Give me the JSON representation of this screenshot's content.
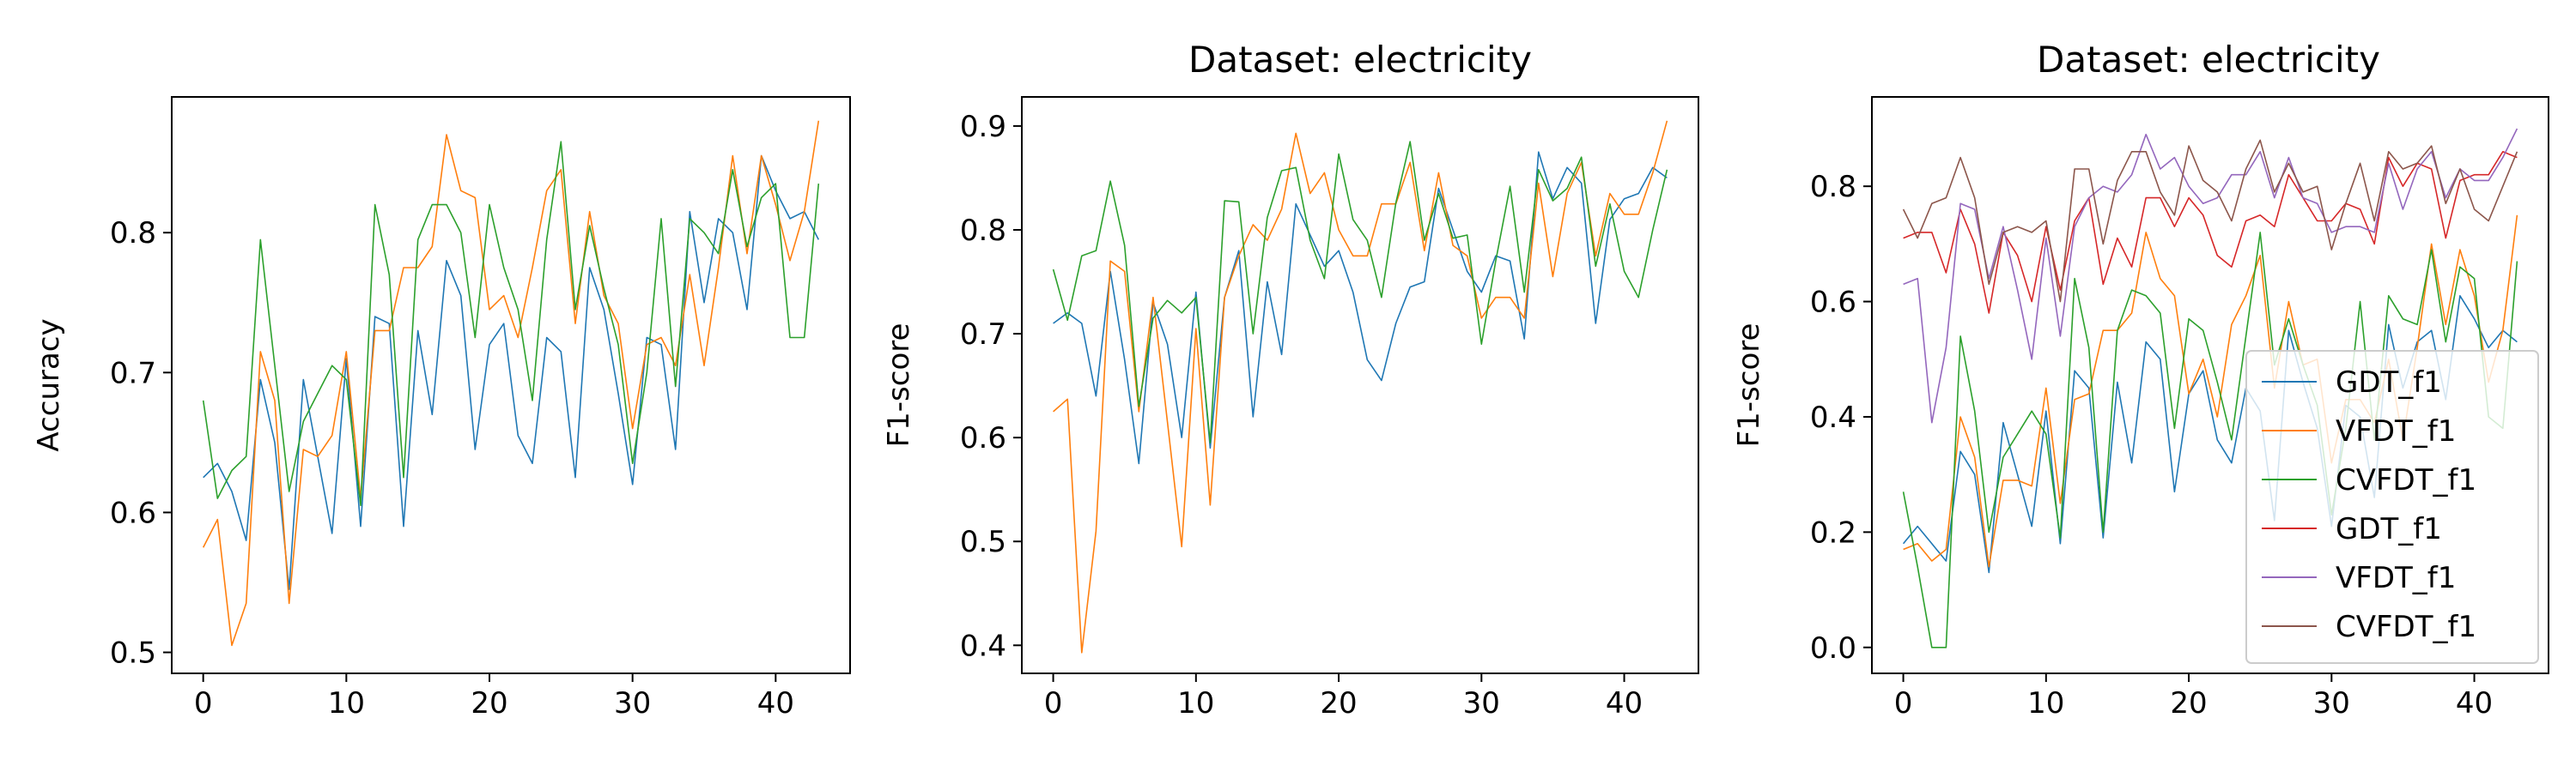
{
  "chart_data": [
    {
      "type": "line",
      "title": "",
      "xlabel": "",
      "ylabel": "Accuracy",
      "xlim": [
        -2.2,
        45.2
      ],
      "ylim": [
        0.485,
        0.897
      ],
      "xticks": [
        0,
        10,
        20,
        30,
        40
      ],
      "yticks": [
        0.5,
        0.6,
        0.7,
        0.8
      ],
      "grid": false,
      "legend": "none",
      "x": [
        0,
        1,
        2,
        3,
        4,
        5,
        6,
        7,
        8,
        9,
        10,
        11,
        12,
        13,
        14,
        15,
        16,
        17,
        18,
        19,
        20,
        21,
        22,
        23,
        24,
        25,
        26,
        27,
        28,
        29,
        30,
        31,
        32,
        33,
        34,
        35,
        36,
        37,
        38,
        39,
        40,
        41,
        42,
        43
      ],
      "series": [
        {
          "color": "#1f77b4",
          "values": [
            0.625,
            0.635,
            0.615,
            0.58,
            0.695,
            0.65,
            0.545,
            0.695,
            0.64,
            0.585,
            0.71,
            0.59,
            0.74,
            0.735,
            0.59,
            0.73,
            0.67,
            0.78,
            0.755,
            0.645,
            0.72,
            0.735,
            0.655,
            0.635,
            0.725,
            0.715,
            0.625,
            0.775,
            0.745,
            0.685,
            0.62,
            0.725,
            0.72,
            0.645,
            0.815,
            0.75,
            0.81,
            0.8,
            0.745,
            0.855,
            0.83,
            0.81,
            0.815,
            0.795
          ]
        },
        {
          "color": "#ff7f0e",
          "values": [
            0.575,
            0.595,
            0.505,
            0.535,
            0.715,
            0.68,
            0.535,
            0.645,
            0.64,
            0.655,
            0.715,
            0.61,
            0.73,
            0.73,
            0.775,
            0.775,
            0.79,
            0.87,
            0.83,
            0.825,
            0.745,
            0.755,
            0.725,
            0.775,
            0.83,
            0.845,
            0.735,
            0.815,
            0.755,
            0.735,
            0.66,
            0.72,
            0.725,
            0.705,
            0.77,
            0.705,
            0.775,
            0.855,
            0.785,
            0.855,
            0.82,
            0.78,
            0.815,
            0.88
          ]
        },
        {
          "color": "#2ca02c",
          "values": [
            0.68,
            0.61,
            0.63,
            0.64,
            0.795,
            0.705,
            0.615,
            0.665,
            0.685,
            0.705,
            0.695,
            0.605,
            0.82,
            0.77,
            0.625,
            0.795,
            0.82,
            0.82,
            0.8,
            0.725,
            0.82,
            0.775,
            0.745,
            0.68,
            0.795,
            0.865,
            0.745,
            0.805,
            0.76,
            0.72,
            0.635,
            0.7,
            0.81,
            0.69,
            0.81,
            0.8,
            0.785,
            0.845,
            0.79,
            0.825,
            0.835,
            0.725,
            0.725,
            0.835
          ]
        }
      ]
    },
    {
      "type": "line",
      "title": "Dataset: electricity",
      "xlabel": "",
      "ylabel": "F1-score",
      "xlim": [
        -2.2,
        45.2
      ],
      "ylim": [
        0.373,
        0.928
      ],
      "xticks": [
        0,
        10,
        20,
        30,
        40
      ],
      "yticks": [
        0.4,
        0.5,
        0.6,
        0.7,
        0.8,
        0.9
      ],
      "grid": false,
      "legend": "none",
      "x": [
        0,
        1,
        2,
        3,
        4,
        5,
        6,
        7,
        8,
        9,
        10,
        11,
        12,
        13,
        14,
        15,
        16,
        17,
        18,
        19,
        20,
        21,
        22,
        23,
        24,
        25,
        26,
        27,
        28,
        29,
        30,
        31,
        32,
        33,
        34,
        35,
        36,
        37,
        38,
        39,
        40,
        41,
        42,
        43
      ],
      "series": [
        {
          "color": "#1f77b4",
          "values": [
            0.71,
            0.72,
            0.71,
            0.64,
            0.76,
            0.675,
            0.575,
            0.73,
            0.69,
            0.6,
            0.74,
            0.59,
            0.735,
            0.78,
            0.62,
            0.75,
            0.68,
            0.825,
            0.795,
            0.765,
            0.78,
            0.74,
            0.675,
            0.655,
            0.71,
            0.745,
            0.75,
            0.84,
            0.8,
            0.76,
            0.74,
            0.775,
            0.77,
            0.695,
            0.875,
            0.83,
            0.86,
            0.845,
            0.71,
            0.81,
            0.83,
            0.835,
            0.86,
            0.85
          ]
        },
        {
          "color": "#ff7f0e",
          "values": [
            0.625,
            0.637,
            0.393,
            0.51,
            0.77,
            0.76,
            0.625,
            0.735,
            0.615,
            0.495,
            0.705,
            0.535,
            0.735,
            0.775,
            0.805,
            0.79,
            0.82,
            0.893,
            0.835,
            0.855,
            0.8,
            0.775,
            0.775,
            0.825,
            0.825,
            0.865,
            0.78,
            0.855,
            0.785,
            0.775,
            0.715,
            0.735,
            0.735,
            0.715,
            0.845,
            0.755,
            0.835,
            0.865,
            0.775,
            0.835,
            0.815,
            0.815,
            0.855,
            0.905
          ]
        },
        {
          "color": "#2ca02c",
          "values": [
            0.762,
            0.713,
            0.775,
            0.78,
            0.847,
            0.785,
            0.63,
            0.715,
            0.732,
            0.72,
            0.735,
            0.595,
            0.828,
            0.827,
            0.7,
            0.812,
            0.857,
            0.86,
            0.79,
            0.753,
            0.873,
            0.81,
            0.79,
            0.735,
            0.826,
            0.885,
            0.79,
            0.835,
            0.792,
            0.795,
            0.69,
            0.77,
            0.842,
            0.74,
            0.858,
            0.828,
            0.84,
            0.87,
            0.765,
            0.825,
            0.76,
            0.735,
            0.8,
            0.858
          ]
        }
      ]
    },
    {
      "type": "line",
      "title": "Dataset: electricity",
      "xlabel": "",
      "ylabel": "F1-score",
      "xlim": [
        -2.2,
        45.2
      ],
      "ylim": [
        -0.045,
        0.955
      ],
      "xticks": [
        0,
        10,
        20,
        30,
        40
      ],
      "yticks": [
        0.0,
        0.2,
        0.4,
        0.6,
        0.8
      ],
      "grid": false,
      "legend": "lower-right",
      "x": [
        0,
        1,
        2,
        3,
        4,
        5,
        6,
        7,
        8,
        9,
        10,
        11,
        12,
        13,
        14,
        15,
        16,
        17,
        18,
        19,
        20,
        21,
        22,
        23,
        24,
        25,
        26,
        27,
        28,
        29,
        30,
        31,
        32,
        33,
        34,
        35,
        36,
        37,
        38,
        39,
        40,
        41,
        42,
        43
      ],
      "series": [
        {
          "name": "GDT_f1",
          "color": "#1f77b4",
          "values": [
            0.18,
            0.21,
            0.18,
            0.15,
            0.34,
            0.3,
            0.13,
            0.39,
            0.3,
            0.21,
            0.41,
            0.18,
            0.48,
            0.45,
            0.19,
            0.46,
            0.32,
            0.53,
            0.5,
            0.27,
            0.44,
            0.48,
            0.36,
            0.32,
            0.45,
            0.41,
            0.22,
            0.55,
            0.46,
            0.38,
            0.21,
            0.42,
            0.4,
            0.26,
            0.56,
            0.45,
            0.53,
            0.55,
            0.43,
            0.61,
            0.57,
            0.52,
            0.55,
            0.53
          ]
        },
        {
          "name": "VFDT_f1",
          "color": "#ff7f0e",
          "values": [
            0.17,
            0.18,
            0.15,
            0.17,
            0.4,
            0.33,
            0.14,
            0.29,
            0.29,
            0.28,
            0.45,
            0.25,
            0.43,
            0.44,
            0.55,
            0.55,
            0.58,
            0.72,
            0.64,
            0.61,
            0.44,
            0.5,
            0.4,
            0.56,
            0.61,
            0.68,
            0.45,
            0.6,
            0.49,
            0.5,
            0.32,
            0.43,
            0.43,
            0.39,
            0.5,
            0.36,
            0.52,
            0.7,
            0.56,
            0.69,
            0.61,
            0.46,
            0.55,
            0.75
          ]
        },
        {
          "name": "CVFDT_f1",
          "color": "#2ca02c",
          "values": [
            0.27,
            0.14,
            0.0,
            0.0,
            0.54,
            0.41,
            0.2,
            0.33,
            0.37,
            0.41,
            0.37,
            0.19,
            0.64,
            0.52,
            0.2,
            0.55,
            0.62,
            0.61,
            0.58,
            0.38,
            0.57,
            0.55,
            0.46,
            0.36,
            0.54,
            0.72,
            0.49,
            0.57,
            0.49,
            0.42,
            0.23,
            0.38,
            0.6,
            0.36,
            0.61,
            0.57,
            0.56,
            0.69,
            0.53,
            0.66,
            0.64,
            0.4,
            0.38,
            0.67
          ]
        },
        {
          "name": "GDT_f1",
          "color": "#d62728",
          "values": [
            0.71,
            0.72,
            0.72,
            0.65,
            0.76,
            0.7,
            0.58,
            0.72,
            0.68,
            0.6,
            0.73,
            0.62,
            0.74,
            0.78,
            0.63,
            0.71,
            0.66,
            0.78,
            0.78,
            0.73,
            0.78,
            0.75,
            0.68,
            0.66,
            0.74,
            0.75,
            0.73,
            0.82,
            0.78,
            0.74,
            0.74,
            0.77,
            0.76,
            0.7,
            0.85,
            0.8,
            0.84,
            0.83,
            0.71,
            0.81,
            0.82,
            0.82,
            0.86,
            0.85
          ]
        },
        {
          "name": "VFDT_f1",
          "color": "#9467bd",
          "values": [
            0.63,
            0.64,
            0.39,
            0.52,
            0.77,
            0.76,
            0.64,
            0.73,
            0.62,
            0.5,
            0.71,
            0.54,
            0.73,
            0.78,
            0.8,
            0.79,
            0.82,
            0.89,
            0.83,
            0.85,
            0.8,
            0.77,
            0.78,
            0.82,
            0.82,
            0.86,
            0.78,
            0.85,
            0.78,
            0.77,
            0.72,
            0.73,
            0.73,
            0.72,
            0.84,
            0.76,
            0.83,
            0.86,
            0.78,
            0.83,
            0.81,
            0.81,
            0.85,
            0.9
          ]
        },
        {
          "name": "CVFDT_f1",
          "color": "#8c564b",
          "values": [
            0.76,
            0.71,
            0.77,
            0.78,
            0.85,
            0.78,
            0.63,
            0.72,
            0.73,
            0.72,
            0.74,
            0.6,
            0.83,
            0.83,
            0.7,
            0.81,
            0.86,
            0.86,
            0.79,
            0.75,
            0.87,
            0.81,
            0.79,
            0.74,
            0.83,
            0.88,
            0.79,
            0.84,
            0.79,
            0.8,
            0.69,
            0.77,
            0.84,
            0.74,
            0.86,
            0.83,
            0.84,
            0.87,
            0.77,
            0.83,
            0.76,
            0.74,
            0.8,
            0.86
          ]
        }
      ]
    }
  ]
}
